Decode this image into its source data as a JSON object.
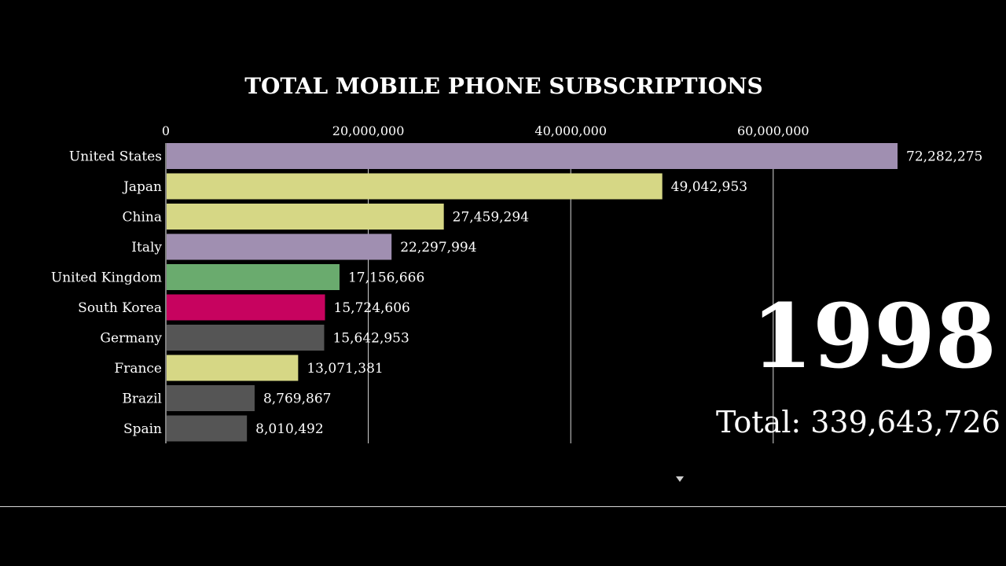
{
  "chart_data": {
    "type": "bar",
    "orientation": "horizontal",
    "title": "TOTAL MOBILE PHONE SUBSCRIPTIONS",
    "categories": [
      "United States",
      "Japan",
      "China",
      "Italy",
      "United Kingdom",
      "South Korea",
      "Germany",
      "France",
      "Brazil",
      "Spain"
    ],
    "values": [
      72282275,
      49042953,
      27459294,
      22297994,
      17156666,
      15724606,
      15642953,
      13071381,
      8769867,
      8010492
    ],
    "value_labels": [
      "72,282,275",
      "49,042,953",
      "27,459,294",
      "22,297,994",
      "17,156,666",
      "15,724,606",
      "15,642,953",
      "13,071,381",
      "8,769,867",
      "8,010,492"
    ],
    "colors": [
      "#a08fb1",
      "#d6d785",
      "#d6d785",
      "#a08fb1",
      "#6aab6e",
      "#c7035f",
      "#555555",
      "#d6d785",
      "#555555",
      "#555555"
    ],
    "x_ticks": [
      0,
      20000000,
      40000000,
      60000000
    ],
    "x_tick_labels": [
      "0",
      "20,000,000",
      "40,000,000",
      "60,000,000"
    ],
    "xlim": [
      0,
      72282275
    ],
    "grid": true,
    "axis_position": "top"
  },
  "overlay": {
    "year": "1998",
    "total_label": "Total: 339,643,726"
  },
  "colors": {
    "background": "#000000",
    "gridline": "#ffffff",
    "text": "#ffffff"
  },
  "player": {
    "scrubber_icon": "triangle-down-icon"
  }
}
